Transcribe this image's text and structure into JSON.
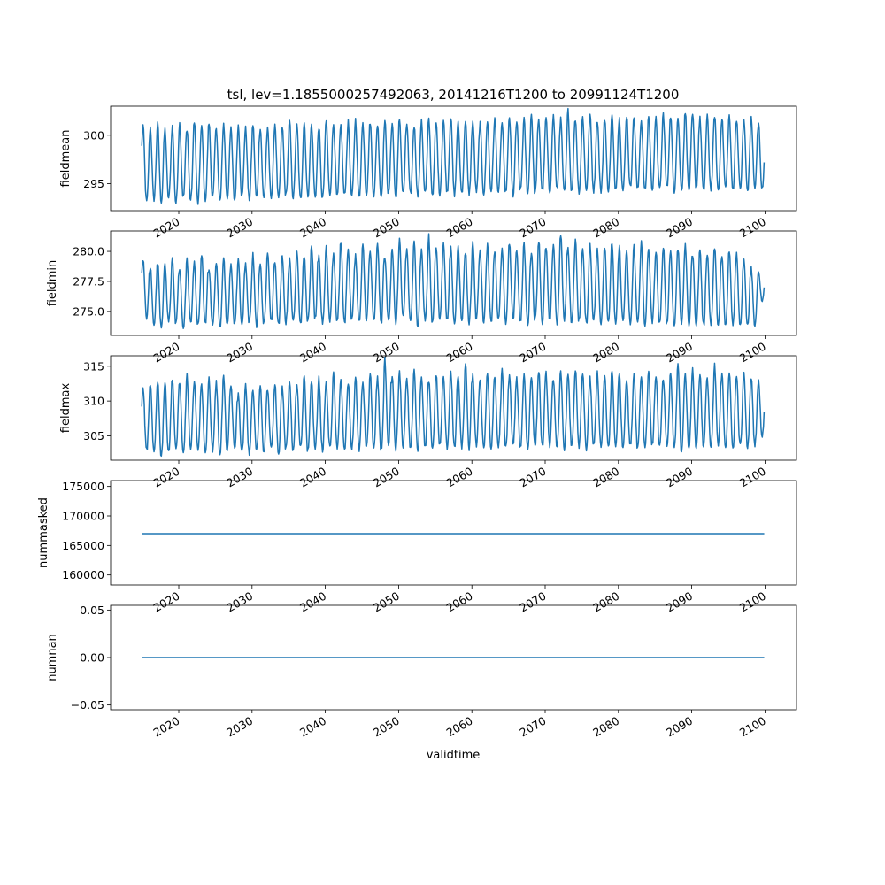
{
  "title": "tsl, lev=1.1855000257492063, 20141216T1200 to 20991124T1200",
  "xlabel": "validtime",
  "colors": {
    "line": "#1f77b4",
    "axes": "#000000",
    "background": "#ffffff"
  },
  "chart_data": {
    "type": "line",
    "title": "tsl, lev=1.1855000257492063, 20141216T1200 to 20991124T1200",
    "xlabel": "validtime",
    "x_tick_labels": [
      "2020",
      "2030",
      "2040",
      "2050",
      "2060",
      "2070",
      "2080",
      "2090",
      "2100"
    ],
    "x_tick_values": [
      2020,
      2030,
      2040,
      2050,
      2060,
      2070,
      2080,
      2090,
      2100
    ],
    "x_range": [
      "20141216T1200",
      "20991124T1200"
    ],
    "xlim": [
      2010.7,
      2104.3
    ],
    "time_step": "monthly",
    "grid": false,
    "legend": "none",
    "panels": [
      {
        "ylabel": "fieldmean",
        "ylim": [
          292.2,
          303.0
        ],
        "yticks": [
          295,
          300
        ],
        "ytick_labels": [
          "295",
          "300"
        ],
        "seasonal": {
          "lows": [
            293.1,
            293.4,
            293.2,
            293.5,
            293.0,
            293.6,
            293.3,
            293.0,
            293.4,
            293.6,
            293.2,
            293.5,
            293.3,
            293.7,
            293.4,
            293.6,
            293.5,
            293.7,
            293.4,
            293.8,
            293.6,
            293.4,
            293.8,
            293.7,
            293.5,
            293.9,
            293.6,
            293.8,
            293.7,
            293.6,
            294.0,
            293.8,
            293.7,
            293.9,
            293.6,
            294.0,
            293.9,
            293.8,
            294.1,
            293.9,
            294.0,
            294.2,
            293.9,
            294.1,
            294.0,
            294.2,
            294.0,
            294.3,
            294.1,
            294.2,
            293.8,
            294.3,
            294.1,
            294.0,
            294.3,
            294.2,
            294.4,
            294.1,
            294.3,
            294.2,
            294.4,
            294.3,
            294.2,
            294.4,
            294.5,
            294.3,
            294.6,
            294.4,
            294.3,
            294.5,
            294.4,
            294.6,
            294.3,
            294.5,
            294.4,
            294.6,
            294.2,
            294.5,
            294.3,
            294.6,
            294.4,
            294.5,
            294.3,
            294.6,
            294.4
          ],
          "highs": [
            301.0,
            300.8,
            301.1,
            300.6,
            300.9,
            301.2,
            300.7,
            301.6,
            300.9,
            301.3,
            300.8,
            301.2,
            300.6,
            301.0,
            300.7,
            301.1,
            300.8,
            300.6,
            301.2,
            300.9,
            301.4,
            301.0,
            301.3,
            301.1,
            300.9,
            301.5,
            301.2,
            301.0,
            301.3,
            301.6,
            301.2,
            301.4,
            301.1,
            301.5,
            301.3,
            301.7,
            301.2,
            301.0,
            301.4,
            301.6,
            301.3,
            301.5,
            301.8,
            301.2,
            301.6,
            301.4,
            301.2,
            301.5,
            301.7,
            301.3,
            301.9,
            301.4,
            301.6,
            302.2,
            301.5,
            301.8,
            302.0,
            301.6,
            302.5,
            301.7,
            301.9,
            302.1,
            301.6,
            301.8,
            302.0,
            301.7,
            302.1,
            301.8,
            301.5,
            302.0,
            301.7,
            302.2,
            302.0,
            301.8,
            302.4,
            302.1,
            301.7,
            301.9,
            302.1,
            301.8,
            302.0,
            301.7,
            301.6,
            301.9,
            301.2
          ]
        }
      },
      {
        "ylabel": "fieldmin",
        "ylim": [
          273.0,
          281.7
        ],
        "yticks": [
          275.0,
          277.5,
          280.0
        ],
        "ytick_labels": [
          "275.0",
          "277.5",
          "280.0"
        ],
        "seasonal": {
          "lows": [
            274.5,
            274.0,
            273.8,
            274.2,
            273.9,
            273.7,
            274.1,
            273.8,
            273.9,
            274.0,
            273.7,
            273.8,
            274.0,
            273.9,
            274.1,
            273.8,
            274.0,
            274.2,
            273.9,
            274.1,
            274.3,
            274.0,
            274.2,
            274.4,
            274.1,
            274.3,
            274.2,
            274.0,
            274.3,
            274.1,
            274.4,
            274.2,
            274.0,
            274.3,
            274.1,
            274.4,
            274.2,
            273.9,
            274.3,
            274.1,
            274.4,
            274.2,
            274.0,
            274.3,
            274.1,
            274.4,
            274.2,
            274.1,
            274.3,
            274.0,
            274.4,
            274.2,
            274.0,
            274.3,
            274.1,
            274.2,
            274.0,
            274.3,
            274.1,
            274.2,
            274.0,
            274.3,
            274.1,
            274.2,
            273.9,
            274.2,
            274.0,
            274.1,
            273.8,
            274.1,
            273.9,
            274.0,
            273.8,
            274.1,
            273.9,
            274.0,
            273.8,
            274.0,
            273.9,
            273.8,
            274.0,
            273.9,
            273.8,
            273.9,
            275.9
          ],
          "highs": [
            279.4,
            278.7,
            279.1,
            278.9,
            279.6,
            278.5,
            279.3,
            279.0,
            279.8,
            278.6,
            279.2,
            279.5,
            278.8,
            279.4,
            279.0,
            279.7,
            278.9,
            280.0,
            279.2,
            279.8,
            279.3,
            280.2,
            279.6,
            280.6,
            279.5,
            280.4,
            279.9,
            280.9,
            280.1,
            279.7,
            280.5,
            280.0,
            280.8,
            279.6,
            280.3,
            281.0,
            280.2,
            280.7,
            280.1,
            281.2,
            280.4,
            280.9,
            280.2,
            280.6,
            280.0,
            280.8,
            280.3,
            280.5,
            280.1,
            280.4,
            280.8,
            280.2,
            280.6,
            280.0,
            281.0,
            280.4,
            280.7,
            281.5,
            280.3,
            280.9,
            280.2,
            280.6,
            280.1,
            280.5,
            280.8,
            280.3,
            279.9,
            280.4,
            280.7,
            280.2,
            280.0,
            280.5,
            280.1,
            280.3,
            280.6,
            279.8,
            280.2,
            279.9,
            280.4,
            279.6,
            280.1,
            279.8,
            279.5,
            278.6,
            278.2
          ]
        }
      },
      {
        "ylabel": "fieldmax",
        "ylim": [
          301.5,
          316.5
        ],
        "yticks": [
          305,
          310,
          315
        ],
        "ytick_labels": [
          "305",
          "310",
          "315"
        ],
        "seasonal": {
          "lows": [
            303.0,
            302.6,
            302.2,
            302.8,
            303.1,
            302.4,
            302.9,
            303.2,
            302.6,
            303.0,
            302.5,
            302.9,
            303.2,
            302.7,
            302.5,
            303.0,
            302.8,
            303.2,
            302.6,
            303.1,
            302.9,
            303.3,
            302.8,
            303.2,
            303.0,
            303.4,
            303.1,
            302.9,
            303.3,
            303.1,
            303.5,
            303.2,
            303.0,
            303.4,
            303.2,
            303.6,
            303.3,
            303.1,
            303.5,
            303.2,
            303.6,
            303.4,
            303.2,
            303.5,
            303.3,
            303.6,
            303.4,
            303.2,
            303.5,
            303.3,
            303.7,
            303.4,
            303.2,
            303.6,
            303.4,
            303.7,
            303.5,
            303.3,
            303.6,
            303.4,
            303.2,
            303.6,
            303.3,
            303.5,
            303.7,
            303.4,
            303.6,
            303.3,
            303.5,
            303.7,
            303.4,
            303.6,
            303.3,
            302.8,
            303.5,
            303.3,
            303.6,
            303.4,
            303.7,
            303.5,
            303.3,
            303.6,
            303.4,
            303.8,
            305.0
          ],
          "highs": [
            312.0,
            312.5,
            313.0,
            312.6,
            313.4,
            312.8,
            313.6,
            313.0,
            312.4,
            313.2,
            312.7,
            313.5,
            312.3,
            311.0,
            312.2,
            311.5,
            312.4,
            311.8,
            312.6,
            312.1,
            313.0,
            312.4,
            313.6,
            312.8,
            313.3,
            312.6,
            313.8,
            313.1,
            312.5,
            313.4,
            312.7,
            313.9,
            313.2,
            315.8,
            313.5,
            314.0,
            313.3,
            314.3,
            313.6,
            313.0,
            314.0,
            313.4,
            314.4,
            313.7,
            315.6,
            313.9,
            313.2,
            314.1,
            313.5,
            314.3,
            313.8,
            313.1,
            314.0,
            313.6,
            314.5,
            313.9,
            313.3,
            314.2,
            313.7,
            314.6,
            313.8,
            313.2,
            314.1,
            313.5,
            314.4,
            313.9,
            313.1,
            314.0,
            313.6,
            314.3,
            313.8,
            313.2,
            314.1,
            315.2,
            313.7,
            314.4,
            313.9,
            313.3,
            315.0,
            313.8,
            314.2,
            313.6,
            314.0,
            313.5,
            312.8
          ]
        }
      },
      {
        "ylabel": "nummasked",
        "ylim": [
          158300,
          176000
        ],
        "yticks": [
          160000,
          165000,
          170000,
          175000
        ],
        "ytick_labels": [
          "160000",
          "165000",
          "170000",
          "175000"
        ],
        "constant": 167000
      },
      {
        "ylabel": "numnan",
        "ylim": [
          -0.055,
          0.055
        ],
        "yticks": [
          -0.05,
          0.0,
          0.05
        ],
        "ytick_labels": [
          "−0.05",
          "0.00",
          "0.05"
        ],
        "constant": 0.0
      }
    ]
  }
}
